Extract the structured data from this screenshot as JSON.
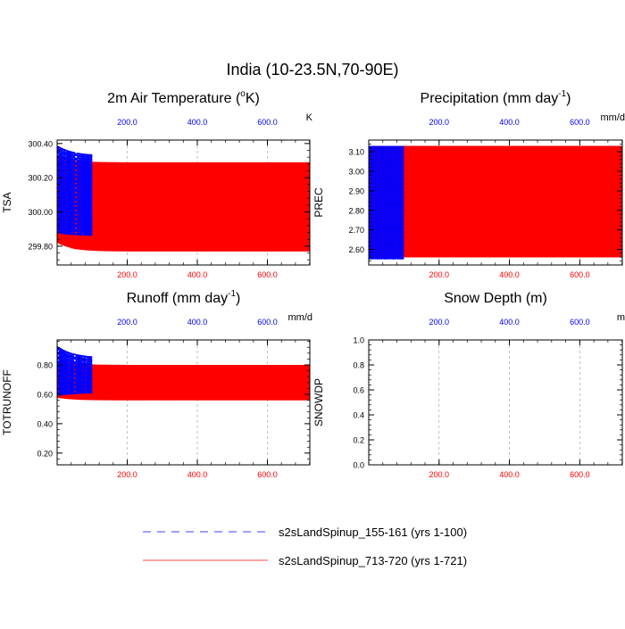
{
  "main_title": "India (10-23.5N,70-90E)",
  "colors": {
    "series1": "#0000ff",
    "series2": "#ff0000",
    "axis": "#000000",
    "grid": "#999999"
  },
  "chart_data": [
    {
      "type": "line",
      "title": "2m Air Temperature (",
      "title_sup": "o",
      "title_tail": "K)",
      "ylabel": "TSA",
      "units": "K",
      "xlim": [
        0,
        721
      ],
      "ylim": [
        299.69,
        300.42
      ],
      "yticks": [
        299.8,
        300.0,
        300.2,
        300.4
      ],
      "ytick_labels": [
        "299.80",
        "300.00",
        "300.20",
        "300.40"
      ],
      "top_ticks": [
        200,
        400,
        600
      ],
      "top_tick_labels": [
        "200.0",
        "400.0",
        "600.0"
      ],
      "bottom_ticks": [
        200,
        400,
        600
      ],
      "bottom_tick_labels": [
        "200.0",
        "400.0",
        "600.0"
      ],
      "series": [
        {
          "name": "s2sLandSpinup_155-161 (yrs 1-100)",
          "years": 100,
          "upper_start": 300.39,
          "upper_end": 300.33,
          "lower_start": 299.88,
          "lower_end": 299.86,
          "inner_upper": 300.17,
          "inner_lower": 300.12
        },
        {
          "name": "s2sLandSpinup_713-720 (yrs 1-721)",
          "years": 721,
          "upper_start": 300.32,
          "upper_end": 300.29,
          "lower_start": 299.82,
          "lower_end": 299.77,
          "inner_upper": 300.11,
          "inner_lower": 300.07
        }
      ]
    },
    {
      "type": "line",
      "title": "Precipitation (mm day",
      "title_sup": "-1",
      "title_tail": ")",
      "ylabel": "PREC",
      "units": "mm/d",
      "xlim": [
        0,
        721
      ],
      "ylim": [
        2.52,
        3.16
      ],
      "yticks": [
        2.6,
        2.7,
        2.8,
        2.9,
        3.0,
        3.1
      ],
      "ytick_labels": [
        "2.60",
        "2.70",
        "2.80",
        "2.90",
        "3.00",
        "3.10"
      ],
      "top_ticks": [
        200,
        400,
        600
      ],
      "top_tick_labels": [
        "200.0",
        "400.0",
        "600.0"
      ],
      "bottom_ticks": [
        200,
        400,
        600
      ],
      "bottom_tick_labels": [
        "200.0",
        "400.0",
        "600.0"
      ],
      "series": [
        {
          "name": "s2sLandSpinup_155-161 (yrs 1-100)",
          "years": 100,
          "upper_start": 3.13,
          "upper_end": 3.13,
          "lower_start": 2.55,
          "lower_end": 2.55,
          "inner_upper": 2.94,
          "inner_lower": 2.58
        },
        {
          "name": "s2sLandSpinup_713-720 (yrs 1-721)",
          "years": 721,
          "upper_start": 3.13,
          "upper_end": 3.13,
          "lower_start": 2.56,
          "lower_end": 2.56,
          "inner_upper": 2.94,
          "inner_lower": 2.6
        }
      ]
    },
    {
      "type": "line",
      "title": "Runoff (mm day",
      "title_sup": "-1",
      "title_tail": ")",
      "ylabel": "TOTRUNOFF",
      "units": "mm/d",
      "xlim": [
        0,
        721
      ],
      "ylim": [
        0.12,
        0.97
      ],
      "yticks": [
        0.2,
        0.4,
        0.6,
        0.8
      ],
      "ytick_labels": [
        "0.20",
        "0.40",
        "0.60",
        "0.80"
      ],
      "top_ticks": [
        200,
        400,
        600
      ],
      "top_tick_labels": [
        "200.0",
        "400.0",
        "600.0"
      ],
      "bottom_ticks": [
        200,
        400,
        600
      ],
      "bottom_tick_labels": [
        "200.0",
        "400.0",
        "600.0"
      ],
      "series": [
        {
          "name": "s2sLandSpinup_155-161 (yrs 1-100)",
          "years": 100,
          "upper_start": 0.93,
          "upper_end": 0.85,
          "lower_start": 0.59,
          "lower_end": 0.61,
          "inner_upper": 0.78,
          "inner_lower": 0.64
        },
        {
          "name": "s2sLandSpinup_713-720 (yrs 1-721)",
          "years": 721,
          "upper_start": 0.83,
          "upper_end": 0.8,
          "lower_start": 0.58,
          "lower_end": 0.56,
          "inner_upper": 0.72,
          "inner_lower": 0.63
        }
      ]
    },
    {
      "type": "line",
      "title": "Snow Depth (m)",
      "title_sup": "",
      "title_tail": "",
      "ylabel": "SNOWDP",
      "units": "m",
      "xlim": [
        0,
        721
      ],
      "ylim": [
        0,
        1
      ],
      "yticks": [
        0.0,
        0.2,
        0.4,
        0.6,
        0.8,
        1.0
      ],
      "ytick_labels": [
        "0.0",
        "0.2",
        "0.4",
        "0.6",
        "0.8",
        "1.0"
      ],
      "top_ticks": [
        200,
        400,
        600
      ],
      "top_tick_labels": [
        "200.0",
        "400.0",
        "600.0"
      ],
      "bottom_ticks": [
        200,
        400,
        600
      ],
      "bottom_tick_labels": [
        "200.0",
        "400.0",
        "600.0"
      ],
      "series": [
        {
          "name": "s2sLandSpinup_155-161 (yrs 1-100)",
          "years": 100,
          "constant": 0.0
        },
        {
          "name": "s2sLandSpinup_713-720 (yrs 1-721)",
          "years": 721,
          "constant": 0.0
        }
      ]
    }
  ],
  "legend": [
    {
      "label": "s2sLandSpinup_155-161 (yrs 1-100)",
      "style": "dashed",
      "color": "#0000ff"
    },
    {
      "label": "s2sLandSpinup_713-720 (yrs 1-721)",
      "style": "solid",
      "color": "#ff0000"
    }
  ]
}
